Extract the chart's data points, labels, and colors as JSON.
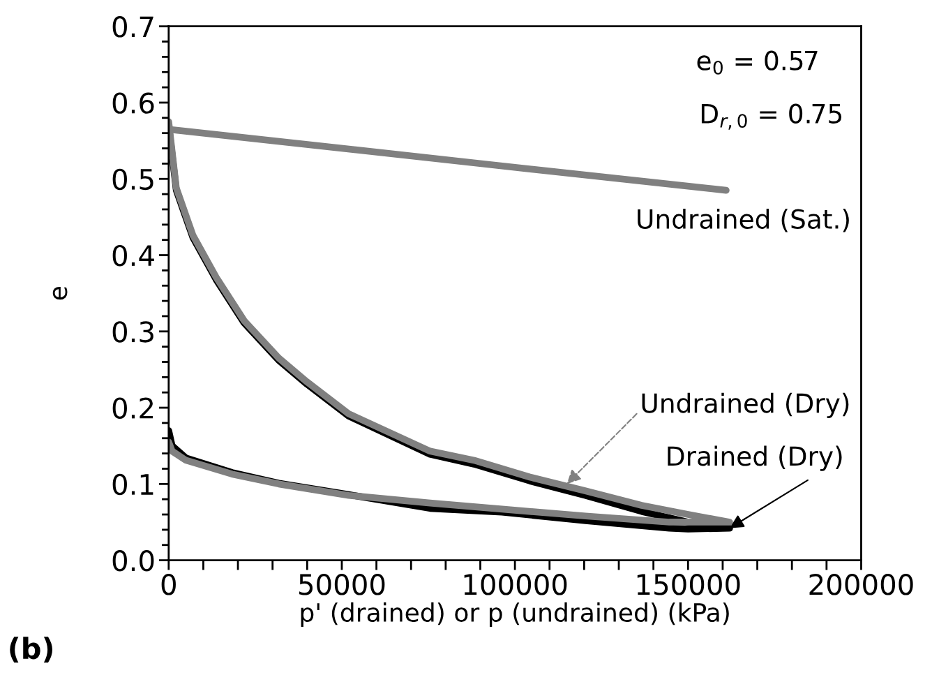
{
  "chart_data": {
    "type": "line",
    "xlabel": "p' (drained) or p (undrained) (kPa)",
    "ylabel": "e",
    "xlim": [
      0,
      200000
    ],
    "ylim": [
      0,
      0.7
    ],
    "xticks": [
      0,
      {
        "value": 10000,
        "label": null
      },
      {
        "value": 20000,
        "label": null
      },
      {
        "value": 30000,
        "label": null
      },
      {
        "value": 40000,
        "label": null
      },
      50000,
      {
        "value": 60000,
        "label": null
      },
      {
        "value": 70000,
        "label": null
      },
      {
        "value": 80000,
        "label": null
      },
      {
        "value": 90000,
        "label": null
      },
      100000,
      {
        "value": 110000,
        "label": null
      },
      {
        "value": 120000,
        "label": null
      },
      {
        "value": 130000,
        "label": null
      },
      {
        "value": 140000,
        "label": null
      },
      150000,
      {
        "value": 160000,
        "label": null
      },
      {
        "value": 170000,
        "label": null
      },
      {
        "value": 180000,
        "label": null
      },
      {
        "value": 190000,
        "label": null
      },
      200000
    ],
    "yticks": [
      {
        "value": 0,
        "label": "0.0"
      },
      {
        "value": 0.02,
        "label": null
      },
      {
        "value": 0.04,
        "label": null
      },
      {
        "value": 0.06,
        "label": null
      },
      {
        "value": 0.08,
        "label": null
      },
      {
        "value": 0.1,
        "label": "0.1"
      },
      {
        "value": 0.12,
        "label": null
      },
      {
        "value": 0.14,
        "label": null
      },
      {
        "value": 0.16,
        "label": null
      },
      {
        "value": 0.18,
        "label": null
      },
      {
        "value": 0.2,
        "label": "0.2"
      },
      {
        "value": 0.22,
        "label": null
      },
      {
        "value": 0.24,
        "label": null
      },
      {
        "value": 0.26,
        "label": null
      },
      {
        "value": 0.28,
        "label": null
      },
      {
        "value": 0.3,
        "label": "0.3"
      },
      {
        "value": 0.32,
        "label": null
      },
      {
        "value": 0.34,
        "label": null
      },
      {
        "value": 0.36,
        "label": null
      },
      {
        "value": 0.38,
        "label": null
      },
      {
        "value": 0.4,
        "label": "0.4"
      },
      {
        "value": 0.42,
        "label": null
      },
      {
        "value": 0.44,
        "label": null
      },
      {
        "value": 0.46,
        "label": null
      },
      {
        "value": 0.48,
        "label": null
      },
      {
        "value": 0.5,
        "label": "0.5"
      },
      {
        "value": 0.52,
        "label": null
      },
      {
        "value": 0.54,
        "label": null
      },
      {
        "value": 0.56,
        "label": null
      },
      {
        "value": 0.58,
        "label": null
      },
      {
        "value": 0.6,
        "label": "0.6"
      },
      {
        "value": 0.62,
        "label": null
      },
      {
        "value": 0.64,
        "label": null
      },
      {
        "value": 0.66,
        "label": null
      },
      {
        "value": 0.68,
        "label": null
      },
      {
        "value": 0.7,
        "label": "0.7"
      }
    ],
    "grid": false,
    "legend": false,
    "marker": "none",
    "line_style": "solid",
    "series": [
      {
        "color": "#000000",
        "x": [
          0,
          2200,
          7000,
          13700,
          21800,
          31800,
          39900,
          52000,
          75500,
          88200,
          104300,
          120400,
          136600,
          150000,
          162000,
          150000,
          144600,
          120400,
          96300,
          75500,
          52000,
          31800,
          18300,
          5000,
          1000,
          0
        ],
        "values": [
          0.57,
          0.485,
          0.423,
          0.368,
          0.311,
          0.262,
          0.231,
          0.189,
          0.139,
          0.126,
          0.104,
          0.085,
          0.064,
          0.05,
          0.042,
          0.041,
          0.042,
          0.052,
          0.063,
          0.068,
          0.086,
          0.101,
          0.115,
          0.134,
          0.15,
          0.17
        ]
      },
      {
        "color": "#808080",
        "x": [
          0,
          2200,
          7000,
          13700,
          21800,
          31800,
          39900,
          52000,
          75500,
          88200,
          104300,
          120400,
          136600,
          150000,
          162000,
          150000,
          144600,
          120400,
          96300,
          75500,
          52000,
          31800,
          18300,
          5000,
          1000,
          0
        ],
        "values": [
          0.575,
          0.488,
          0.426,
          0.371,
          0.314,
          0.265,
          0.234,
          0.192,
          0.143,
          0.131,
          0.109,
          0.091,
          0.072,
          0.06,
          0.05,
          0.05,
          0.05,
          0.058,
          0.067,
          0.075,
          0.085,
          0.1,
          0.113,
          0.131,
          0.143,
          0.155
        ]
      },
      {
        "color": "#808080",
        "x": [
          0,
          92200,
          161000
        ],
        "values": [
          0.565,
          0.519,
          0.485
        ]
      }
    ],
    "annotations": [
      "e$_{0}$ = 0.57",
      "D$_{r,0}$ = 0.75",
      "(b)",
      {
        "text": "Undrained (Sat.)",
        "x": 161000,
        "y": 0.485
      },
      {
        "text": "Undrained (Dry)",
        "x": 115000,
        "y": 0.1
      },
      {
        "text": "Drained (Dry)",
        "x": 162000,
        "y": 0.042
      }
    ]
  }
}
